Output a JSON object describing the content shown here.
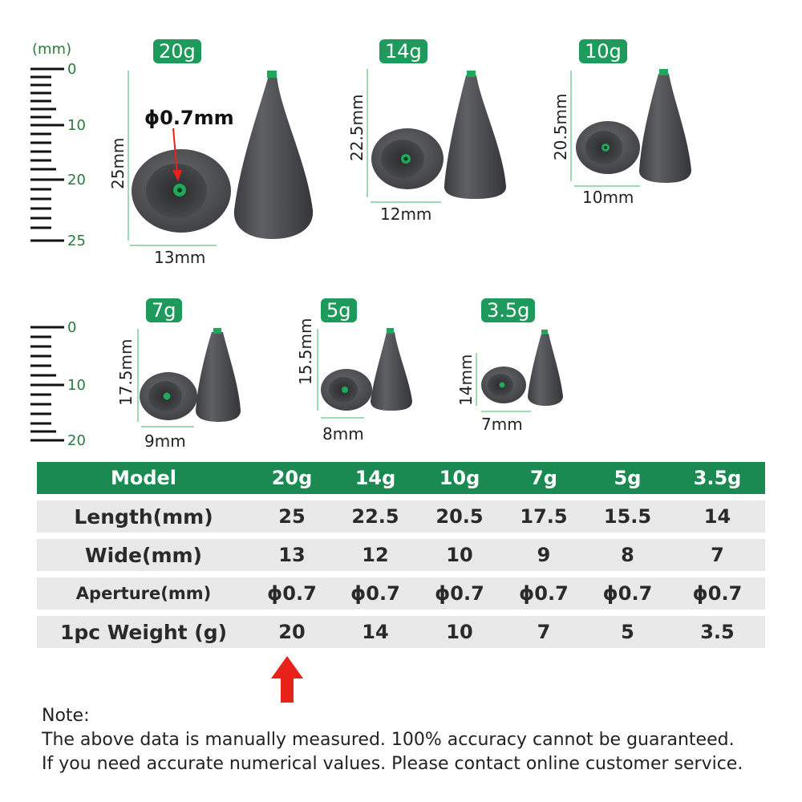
{
  "unit_label": "(mm)",
  "ruler_top": {
    "ticks": [
      "0",
      "10",
      "20",
      "25"
    ]
  },
  "ruler_bottom": {
    "ticks": [
      "0",
      "10",
      "20"
    ]
  },
  "sinkers": [
    {
      "tag": "20g",
      "height": "25mm",
      "width": "13mm",
      "aperture": "ϕ0.7mm"
    },
    {
      "tag": "14g",
      "height": "22.5mm",
      "width": "12mm"
    },
    {
      "tag": "10g",
      "height": "20.5mm",
      "width": "10mm"
    },
    {
      "tag": "7g",
      "height": "17.5mm",
      "width": "9mm"
    },
    {
      "tag": "5g",
      "height": "15.5mm",
      "width": "8mm"
    },
    {
      "tag": "3.5g",
      "height": "14mm",
      "width": "7mm"
    }
  ],
  "table": {
    "header": [
      "Model",
      "20g",
      "14g",
      "10g",
      "7g",
      "5g",
      "3.5g"
    ],
    "rows": [
      {
        "label": "Length(mm)",
        "values": [
          "25",
          "22.5",
          "20.5",
          "17.5",
          "15.5",
          "14"
        ]
      },
      {
        "label": "Wide(mm)",
        "values": [
          "13",
          "12",
          "10",
          "9",
          "8",
          "7"
        ]
      },
      {
        "label": "Aperture(mm)",
        "values": [
          "ϕ0.7",
          "ϕ0.7",
          "ϕ0.7",
          "ϕ0.7",
          "ϕ0.7",
          "ϕ0.7"
        ]
      },
      {
        "label": "1pc Weight (g)",
        "values": [
          "20",
          "14",
          "10",
          "7",
          "5",
          "3.5"
        ]
      }
    ]
  },
  "note": {
    "title": "Note:",
    "line1": "The above data is manually measured. 100% accuracy cannot be guaranteed.",
    "line2": "If you need accurate numerical values. Please contact online customer service."
  },
  "colors": {
    "accent": "#1e9a5c",
    "header": "#1a8a52",
    "arrow": "#e8221b",
    "guide": "#7ccf9c"
  }
}
